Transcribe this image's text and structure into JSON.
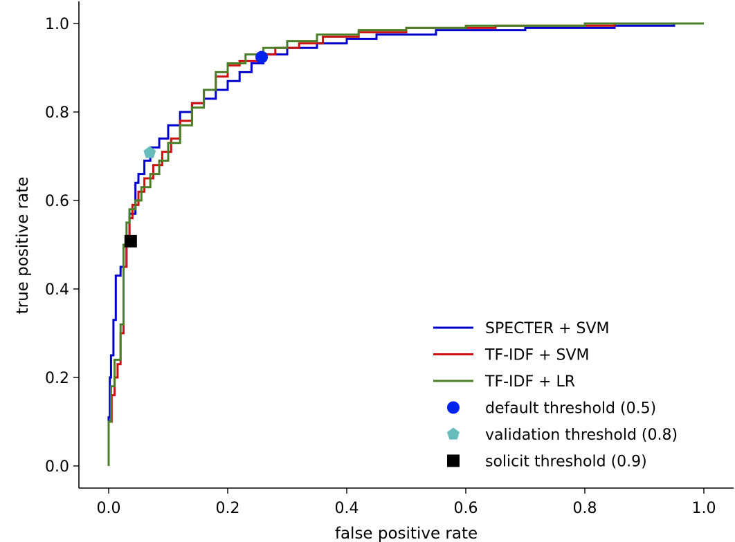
{
  "chart_data": {
    "type": "line",
    "title": "",
    "xlabel": "false positive rate",
    "ylabel": "true positive rate",
    "xlim": [
      -0.05,
      1.05
    ],
    "ylim": [
      -0.05,
      1.05
    ],
    "xticks": [
      "0.0",
      "0.2",
      "0.4",
      "0.6",
      "0.8",
      "1.0"
    ],
    "yticks": [
      "0.0",
      "0.2",
      "0.4",
      "0.6",
      "0.8",
      "1.0"
    ],
    "grid": false,
    "legend_position": "bottom-right",
    "series": [
      {
        "name": "SPECTER + SVM",
        "color": "#0000cc",
        "x": [
          0,
          0,
          0.002,
          0.002,
          0.004,
          0.004,
          0.008,
          0.008,
          0.012,
          0.012,
          0.02,
          0.02,
          0.03,
          0.03,
          0.035,
          0.035,
          0.045,
          0.045,
          0.05,
          0.05,
          0.06,
          0.06,
          0.07,
          0.07,
          0.085,
          0.085,
          0.1,
          0.1,
          0.12,
          0.12,
          0.14,
          0.14,
          0.16,
          0.16,
          0.18,
          0.18,
          0.2,
          0.2,
          0.22,
          0.22,
          0.24,
          0.24,
          0.26,
          0.26,
          0.3,
          0.3,
          0.35,
          0.35,
          0.4,
          0.4,
          0.45,
          0.45,
          0.55,
          0.55,
          0.7,
          0.7,
          0.85,
          0.85,
          0.95,
          0.95,
          1.0
        ],
        "y": [
          0,
          0.11,
          0.11,
          0.2,
          0.2,
          0.25,
          0.25,
          0.33,
          0.33,
          0.43,
          0.43,
          0.45,
          0.45,
          0.52,
          0.52,
          0.57,
          0.57,
          0.64,
          0.64,
          0.66,
          0.66,
          0.69,
          0.69,
          0.72,
          0.72,
          0.74,
          0.74,
          0.77,
          0.77,
          0.8,
          0.8,
          0.82,
          0.82,
          0.83,
          0.83,
          0.85,
          0.85,
          0.87,
          0.87,
          0.89,
          0.89,
          0.91,
          0.91,
          0.93,
          0.93,
          0.945,
          0.945,
          0.955,
          0.955,
          0.965,
          0.965,
          0.975,
          0.975,
          0.985,
          0.985,
          0.99,
          0.99,
          0.995,
          0.995,
          1.0,
          1.0
        ]
      },
      {
        "name": "TF-IDF + SVM",
        "color": "#cc1111",
        "x": [
          0,
          0,
          0.005,
          0.005,
          0.01,
          0.01,
          0.015,
          0.015,
          0.02,
          0.02,
          0.025,
          0.025,
          0.03,
          0.03,
          0.035,
          0.035,
          0.04,
          0.04,
          0.05,
          0.05,
          0.06,
          0.06,
          0.075,
          0.075,
          0.09,
          0.09,
          0.105,
          0.105,
          0.12,
          0.12,
          0.14,
          0.14,
          0.16,
          0.16,
          0.18,
          0.18,
          0.2,
          0.2,
          0.22,
          0.22,
          0.25,
          0.25,
          0.28,
          0.28,
          0.32,
          0.32,
          0.36,
          0.36,
          0.42,
          0.42,
          0.5,
          0.5,
          0.65,
          0.65,
          0.85,
          0.85,
          1.0
        ],
        "y": [
          0,
          0.1,
          0.1,
          0.16,
          0.16,
          0.2,
          0.2,
          0.23,
          0.23,
          0.3,
          0.3,
          0.45,
          0.45,
          0.52,
          0.52,
          0.56,
          0.56,
          0.59,
          0.59,
          0.62,
          0.62,
          0.65,
          0.65,
          0.68,
          0.68,
          0.71,
          0.71,
          0.74,
          0.74,
          0.78,
          0.78,
          0.82,
          0.82,
          0.85,
          0.85,
          0.88,
          0.88,
          0.905,
          0.905,
          0.915,
          0.915,
          0.93,
          0.93,
          0.945,
          0.945,
          0.955,
          0.955,
          0.97,
          0.97,
          0.98,
          0.98,
          0.99,
          0.99,
          0.995,
          0.995,
          1.0,
          1.0
        ]
      },
      {
        "name": "TF-IDF + LR",
        "color": "#4a7f28",
        "x": [
          0,
          0,
          0.004,
          0.004,
          0.01,
          0.01,
          0.02,
          0.02,
          0.025,
          0.025,
          0.03,
          0.03,
          0.035,
          0.035,
          0.045,
          0.045,
          0.055,
          0.055,
          0.07,
          0.07,
          0.085,
          0.085,
          0.1,
          0.1,
          0.12,
          0.12,
          0.14,
          0.14,
          0.16,
          0.16,
          0.18,
          0.18,
          0.2,
          0.2,
          0.23,
          0.23,
          0.26,
          0.26,
          0.3,
          0.3,
          0.35,
          0.35,
          0.42,
          0.42,
          0.5,
          0.5,
          0.6,
          0.6,
          0.8,
          0.8,
          1.0
        ],
        "y": [
          0,
          0.1,
          0.1,
          0.18,
          0.18,
          0.24,
          0.24,
          0.32,
          0.32,
          0.5,
          0.5,
          0.55,
          0.55,
          0.58,
          0.58,
          0.6,
          0.6,
          0.63,
          0.63,
          0.66,
          0.66,
          0.69,
          0.69,
          0.73,
          0.73,
          0.77,
          0.77,
          0.81,
          0.81,
          0.85,
          0.85,
          0.89,
          0.89,
          0.91,
          0.91,
          0.93,
          0.93,
          0.945,
          0.945,
          0.96,
          0.96,
          0.975,
          0.975,
          0.985,
          0.985,
          0.99,
          0.99,
          0.995,
          0.995,
          1.0,
          1.0
        ]
      }
    ],
    "markers": [
      {
        "name": "default threshold (0.5)",
        "shape": "circle",
        "color": "#0022ee",
        "x": 0.257,
        "y": 0.924
      },
      {
        "name": "validation threshold (0.8)",
        "shape": "pentagon",
        "color": "#66bbbb",
        "x": 0.069,
        "y": 0.708
      },
      {
        "name": "solicit threshold (0.9)",
        "shape": "square",
        "color": "#000000",
        "x": 0.037,
        "y": 0.508
      }
    ]
  }
}
